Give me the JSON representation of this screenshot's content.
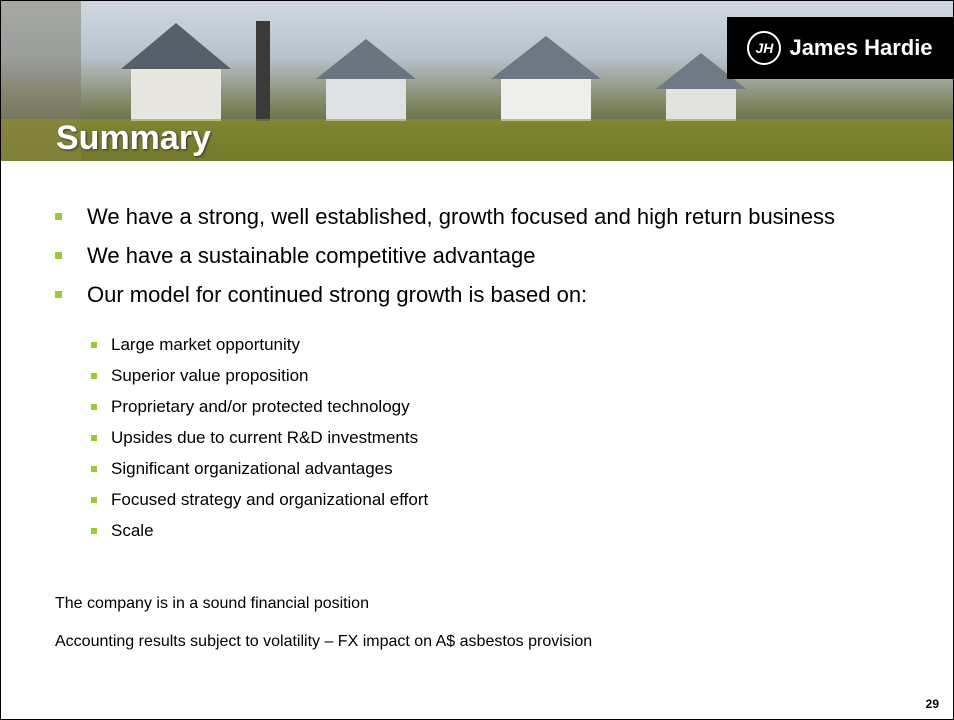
{
  "header": {
    "title": "Summary",
    "logo": "James Hardie"
  },
  "bullets": [
    "We have a strong, well established, growth focused and high return business",
    "We have a sustainable competitive advantage",
    "Our model for continued strong growth is based on:"
  ],
  "sub_bullets": [
    "Large market opportunity",
    "Superior value proposition",
    "Proprietary and/or protected technology",
    "Upsides due to current R&D investments",
    "Significant organizational advantages",
    "Focused strategy and organizational effort",
    "Scale"
  ],
  "closing_bullets": [
    "The company is in a sound financial position",
    "Accounting results subject to volatility – FX impact on A$ asbestos provision"
  ],
  "footer": {
    "page_number": "29"
  }
}
